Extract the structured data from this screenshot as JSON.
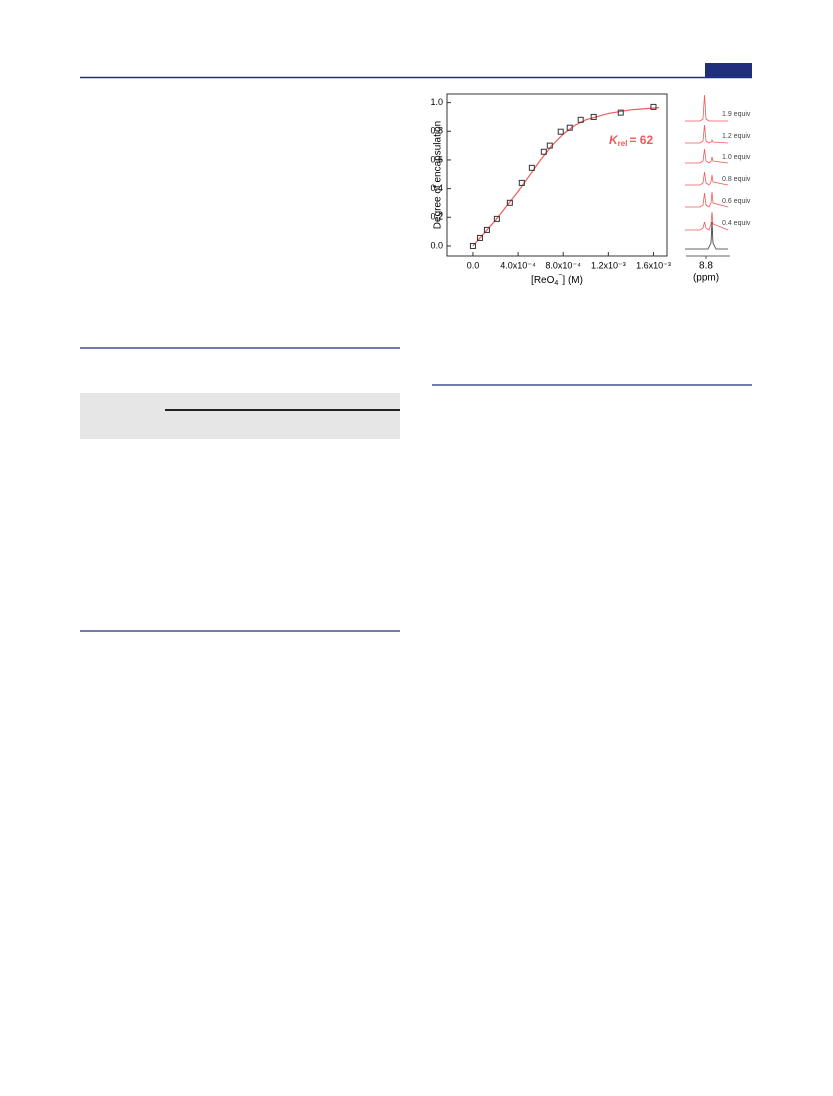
{
  "chart_data": {
    "type": "scatter",
    "y_label": "Degree of encapsulation",
    "x_label": {
      "main": "[ReO",
      "sub": "4",
      "sup": "−",
      "unit": "] (M)"
    },
    "annotation": {
      "symbol": "K",
      "sub": "rel",
      "text": "= 62"
    },
    "xlim": [
      -0.00023,
      0.00172
    ],
    "ylim": [
      -0.07,
      1.06
    ],
    "xticks": [
      {
        "value": 0,
        "label": "0.0"
      },
      {
        "value": 0.0004,
        "label": "4.0x10⁻⁴"
      },
      {
        "value": 0.0008,
        "label": "8.0x10⁻⁴"
      },
      {
        "value": 0.0012,
        "label": "1.2x10⁻³"
      },
      {
        "value": 0.0016,
        "label": "1.6x10⁻³"
      }
    ],
    "yticks": [
      {
        "value": 0,
        "label": "0.0"
      },
      0.2,
      0.4,
      0.6,
      0.8,
      {
        "value": 1,
        "label": "1.0"
      }
    ],
    "points": {
      "color": "#333333",
      "x": [
        0,
        6.2e-05,
        0.000124,
        0.000212,
        0.000327,
        0.000433,
        0.000522,
        0.000628,
        0.000681,
        0.000778,
        0.000858,
        0.000955,
        0.00107,
        0.00131,
        0.0016
      ],
      "y": [
        0,
        0.056,
        0.112,
        0.189,
        0.301,
        0.44,
        0.545,
        0.657,
        0.7,
        0.797,
        0.825,
        0.88,
        0.9,
        0.93,
        0.97
      ]
    },
    "fit": {
      "color": "#f05a5a",
      "x": [
        0,
        0.0001,
        0.0002,
        0.0003,
        0.0004,
        0.0005,
        0.0006,
        0.0007,
        0.0008,
        0.0009,
        0.001,
        0.0012,
        0.0014,
        0.00165
      ],
      "y": [
        0,
        0.09,
        0.18,
        0.28,
        0.38,
        0.49,
        0.6,
        0.7,
        0.78,
        0.84,
        0.88,
        0.925,
        0.95,
        0.965
      ]
    }
  },
  "spectra": {
    "labels": [
      "1.9 equiv",
      "1.2 equiv",
      "1.0 equiv",
      "0.8 equiv",
      "0.6 equiv",
      "0.4 equiv"
    ],
    "tick": 8.8,
    "axis_label": "(ppm)"
  }
}
